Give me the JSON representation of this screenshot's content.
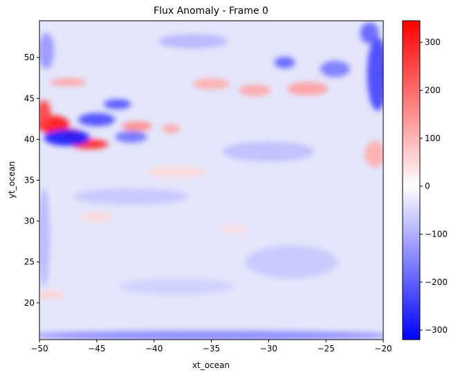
{
  "chart_data": {
    "type": "heatmap",
    "title": "Flux Anomaly - Frame 0",
    "xlabel": "xt_ocean",
    "ylabel": "yt_ocean",
    "xlim": [
      -50,
      -20
    ],
    "ylim": [
      15.5,
      54.5
    ],
    "x_ticks": [
      -50,
      -45,
      -40,
      -35,
      -30,
      -25,
      -20
    ],
    "x_tick_labels": [
      "−50",
      "−45",
      "−40",
      "−35",
      "−30",
      "−25",
      "−20"
    ],
    "y_ticks": [
      20,
      25,
      30,
      35,
      40,
      45,
      50
    ],
    "y_tick_labels": [
      "20",
      "25",
      "30",
      "35",
      "40",
      "45",
      "50"
    ],
    "colorbar": {
      "vmin": -320,
      "vmax": 345,
      "ticks": [
        -300,
        -200,
        -100,
        0,
        100,
        200,
        300
      ],
      "tick_labels": [
        "−300",
        "−200",
        "−100",
        "0",
        "100",
        "200",
        "300"
      ],
      "colormap": "bwr",
      "colors": {
        "low": "#0000ff",
        "mid": "#ffffff",
        "high": "#ff0000"
      }
    },
    "features": [
      {
        "kind": "positive",
        "x": -48.8,
        "y": 41.8,
        "rx": 1.4,
        "ry": 1.1,
        "v": 320
      },
      {
        "kind": "positive",
        "x": -49.6,
        "y": 43.2,
        "rx": 0.6,
        "ry": 1.6,
        "v": 260
      },
      {
        "kind": "positive",
        "x": -45.6,
        "y": 39.4,
        "rx": 1.6,
        "ry": 0.6,
        "v": 300
      },
      {
        "kind": "positive",
        "x": -47.2,
        "y": 40.6,
        "rx": 0.9,
        "ry": 0.7,
        "v": 240
      },
      {
        "kind": "positive",
        "x": -41.5,
        "y": 41.6,
        "rx": 1.3,
        "ry": 0.6,
        "v": 160
      },
      {
        "kind": "positive",
        "x": -38.5,
        "y": 41.3,
        "rx": 0.8,
        "ry": 0.5,
        "v": 120
      },
      {
        "kind": "positive",
        "x": -35.0,
        "y": 46.8,
        "rx": 1.6,
        "ry": 0.7,
        "v": 110
      },
      {
        "kind": "positive",
        "x": -31.2,
        "y": 46.0,
        "rx": 1.4,
        "ry": 0.7,
        "v": 120
      },
      {
        "kind": "positive",
        "x": -26.6,
        "y": 46.2,
        "rx": 1.8,
        "ry": 0.8,
        "v": 130
      },
      {
        "kind": "positive",
        "x": -20.7,
        "y": 38.2,
        "rx": 0.9,
        "ry": 1.6,
        "v": 110
      },
      {
        "kind": "positive",
        "x": -47.5,
        "y": 47.0,
        "rx": 1.6,
        "ry": 0.5,
        "v": 120
      },
      {
        "kind": "positive",
        "x": -38.0,
        "y": 36.0,
        "rx": 2.5,
        "ry": 0.7,
        "v": 50
      },
      {
        "kind": "positive",
        "x": -45.0,
        "y": 30.5,
        "rx": 1.5,
        "ry": 0.6,
        "v": 50
      },
      {
        "kind": "positive",
        "x": -33.0,
        "y": 29.0,
        "rx": 1.2,
        "ry": 0.5,
        "v": 45
      },
      {
        "kind": "positive",
        "x": -49.0,
        "y": 21.0,
        "rx": 1.2,
        "ry": 0.5,
        "v": 60
      },
      {
        "kind": "negative",
        "x": -47.6,
        "y": 40.2,
        "rx": 2.0,
        "ry": 1.0,
        "v": -290
      },
      {
        "kind": "negative",
        "x": -45.0,
        "y": 42.4,
        "rx": 1.6,
        "ry": 0.8,
        "v": -230
      },
      {
        "kind": "negative",
        "x": -43.2,
        "y": 44.3,
        "rx": 1.2,
        "ry": 0.6,
        "v": -220
      },
      {
        "kind": "negative",
        "x": -42.0,
        "y": 40.3,
        "rx": 1.4,
        "ry": 0.7,
        "v": -180
      },
      {
        "kind": "negative",
        "x": -20.5,
        "y": 48.0,
        "rx": 0.9,
        "ry": 4.5,
        "v": -240
      },
      {
        "kind": "negative",
        "x": -21.2,
        "y": 53.0,
        "rx": 0.8,
        "ry": 1.3,
        "v": -200
      },
      {
        "kind": "negative",
        "x": -24.2,
        "y": 48.6,
        "rx": 1.3,
        "ry": 1.0,
        "v": -170
      },
      {
        "kind": "negative",
        "x": -28.6,
        "y": 49.4,
        "rx": 0.9,
        "ry": 0.7,
        "v": -200
      },
      {
        "kind": "negative",
        "x": -36.6,
        "y": 52.0,
        "rx": 3.0,
        "ry": 0.9,
        "v": -90
      },
      {
        "kind": "negative",
        "x": -49.4,
        "y": 50.8,
        "rx": 0.7,
        "ry": 2.2,
        "v": -130
      },
      {
        "kind": "negative",
        "x": -35.0,
        "y": 16.0,
        "rx": 16.0,
        "ry": 0.6,
        "v": -150
      },
      {
        "kind": "negative",
        "x": -49.6,
        "y": 28.0,
        "rx": 0.5,
        "ry": 6.0,
        "v": -90
      },
      {
        "kind": "negative",
        "x": -30.0,
        "y": 38.5,
        "rx": 4.0,
        "ry": 1.2,
        "v": -80
      },
      {
        "kind": "negative",
        "x": -42.0,
        "y": 33.0,
        "rx": 5.0,
        "ry": 1.0,
        "v": -70
      },
      {
        "kind": "negative",
        "x": -28.0,
        "y": 25.0,
        "rx": 4.0,
        "ry": 2.0,
        "v": -70
      },
      {
        "kind": "negative",
        "x": -38.0,
        "y": 22.0,
        "rx": 5.0,
        "ry": 1.0,
        "v": -60
      }
    ]
  }
}
